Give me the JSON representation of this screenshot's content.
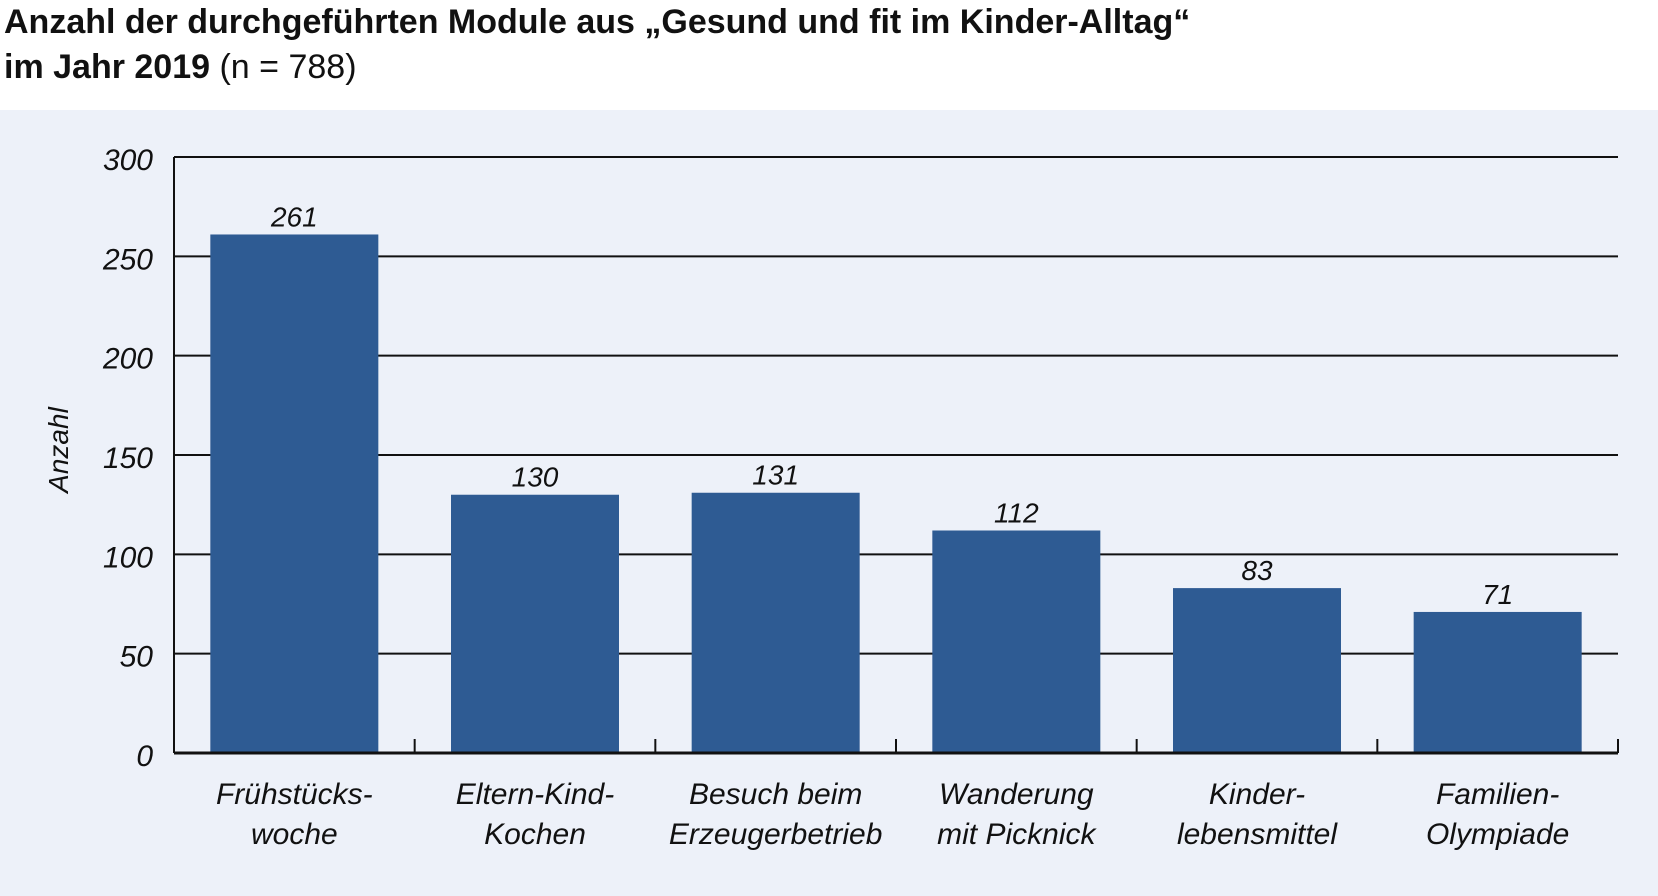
{
  "header": {
    "title_line1": "Anzahl der durchgeführten Module aus „Gesund und fit im Kinder-Alltag“",
    "title_line2": "im Jahr 2019",
    "sample_note": "(n = 788)"
  },
  "colors": {
    "bar": "#2e5b93",
    "panel_background": "#edf1f9",
    "gridline": "#111111"
  },
  "chart_data": {
    "type": "bar",
    "title": "Anzahl der durchgeführten Module aus „Gesund und fit im Kinder-Alltag“ im Jahr 2019 (n = 788)",
    "xlabel": "",
    "ylabel": "Anzahl",
    "ylim": [
      0,
      300
    ],
    "yticks": [
      0,
      50,
      100,
      150,
      200,
      250,
      300
    ],
    "grid": true,
    "legend": "none",
    "categories": [
      [
        "Frühstücks-",
        "woche"
      ],
      [
        "Eltern-Kind-",
        "Kochen"
      ],
      [
        "Besuch beim",
        "Erzeugerbetrieb"
      ],
      [
        "Wanderung",
        "mit Picknick"
      ],
      [
        "Kinder-",
        "lebensmittel"
      ],
      [
        "Familien-",
        "Olympiade"
      ]
    ],
    "values": [
      261,
      130,
      131,
      112,
      83,
      71
    ]
  }
}
